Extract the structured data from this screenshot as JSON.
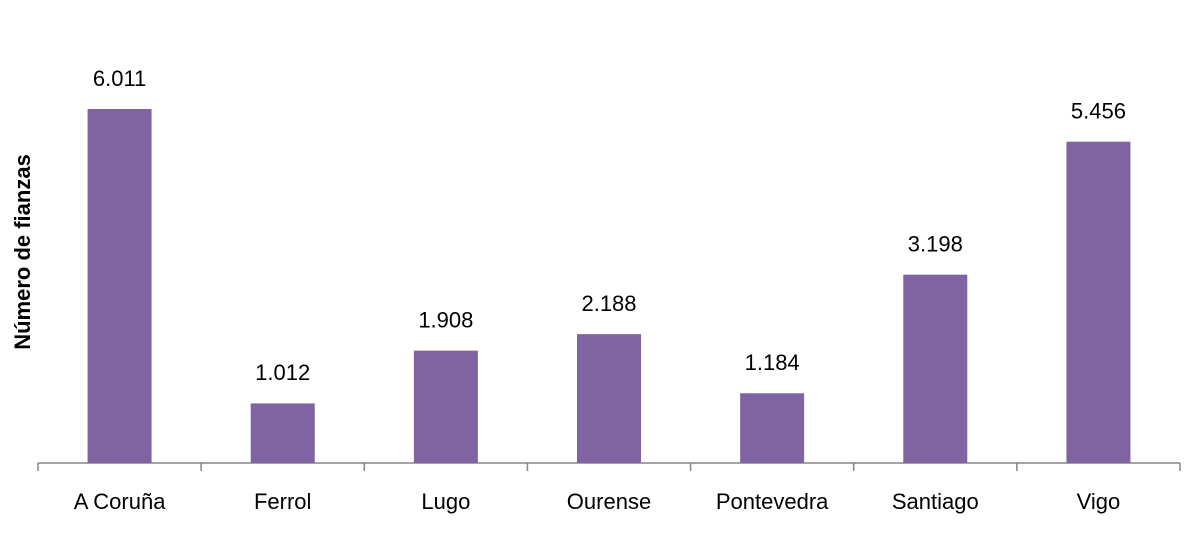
{
  "chart_data": {
    "type": "bar",
    "y_label": "Número de fianzas",
    "categories": [
      "A Coruña",
      "Ferrol",
      "Lugo",
      "Ourense",
      "Pontevedra",
      "Santiago",
      "Vigo"
    ],
    "values": [
      6011,
      1012,
      1908,
      2188,
      1184,
      3198,
      5456
    ],
    "value_labels": [
      "6.011",
      "1.012",
      "1.908",
      "2.188",
      "1.184",
      "3.198",
      "5.456"
    ],
    "color": "#8064a2"
  }
}
